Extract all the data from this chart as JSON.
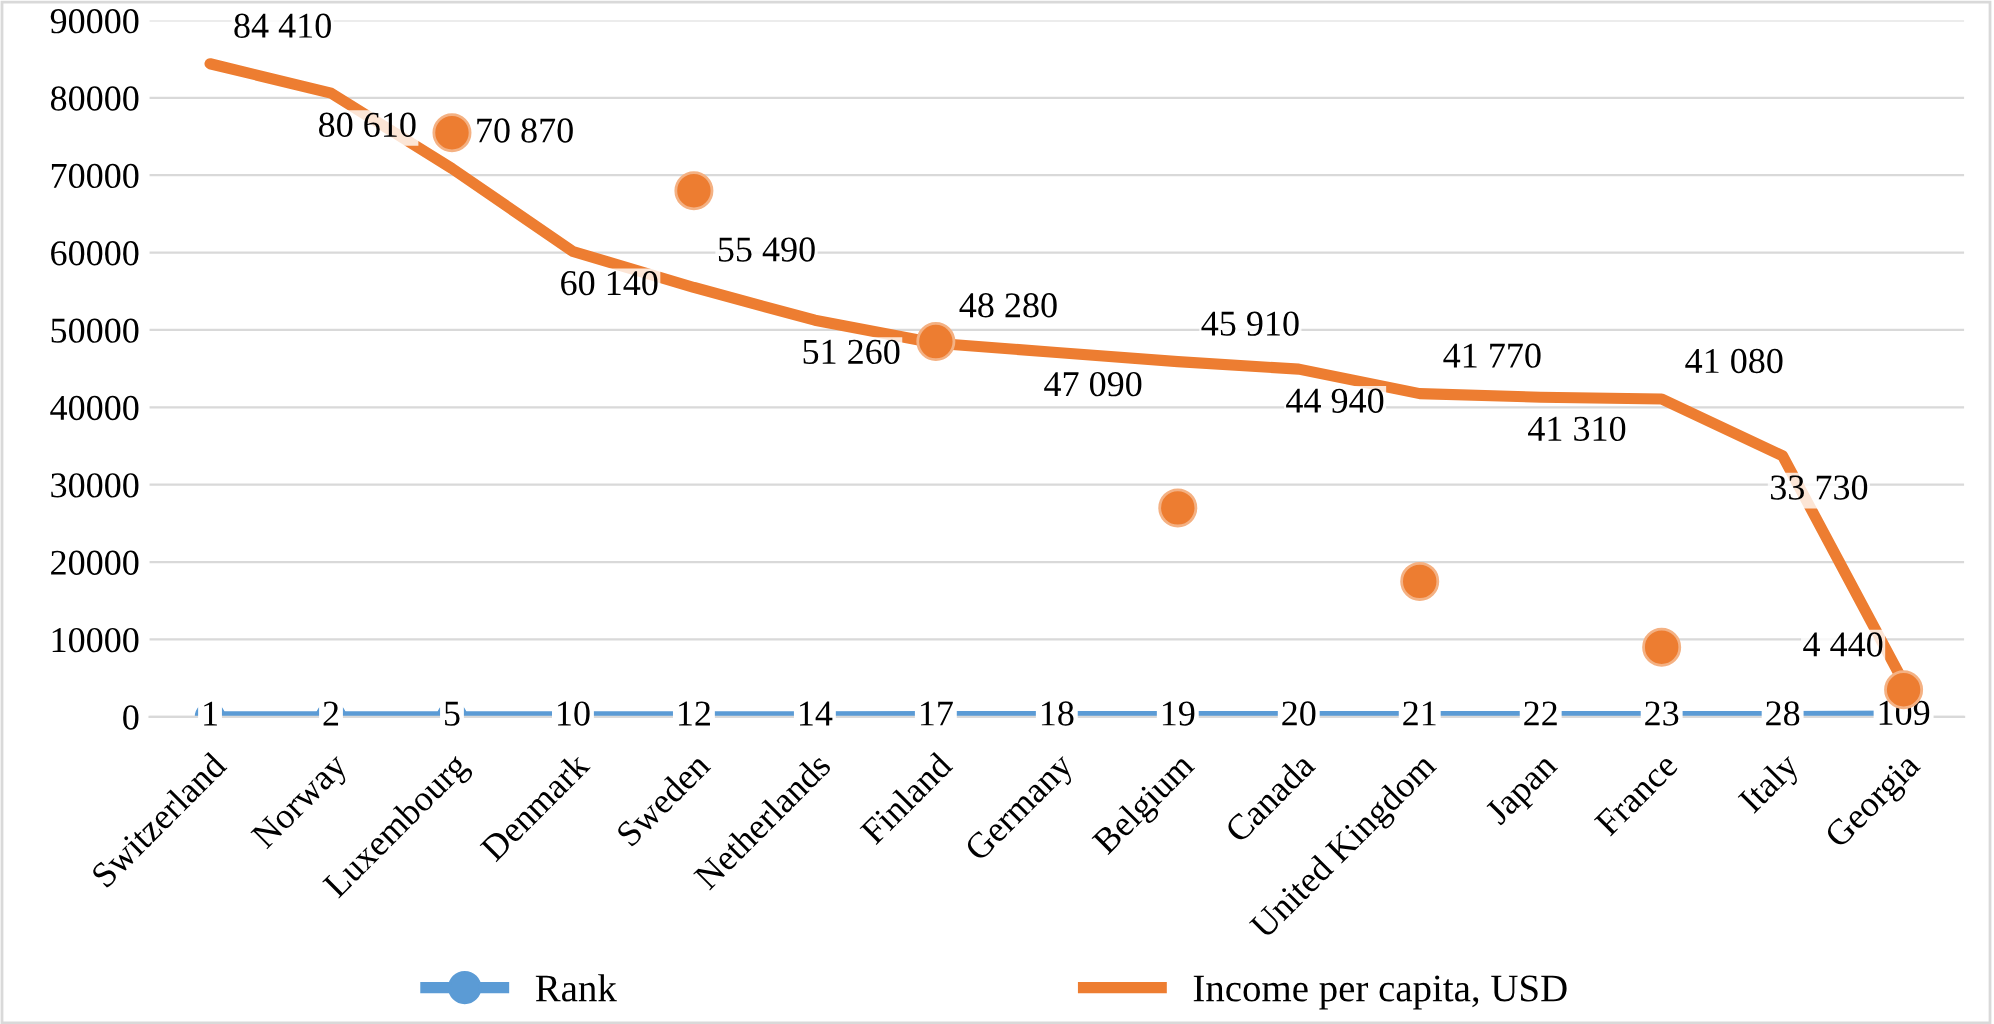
{
  "chart_data": {
    "type": "line",
    "categories": [
      "Switzerland",
      "Norway",
      "Luxembourg",
      "Denmark",
      "Sweden",
      "Netherlands",
      "Finland",
      "Germany",
      "Belgium",
      "Canada",
      "United Kingdom",
      "Japan",
      "France",
      "Italy",
      "Georgia"
    ],
    "series": [
      {
        "name": "Rank",
        "marker": "circle",
        "color": "#5b9bd5",
        "values": [
          1,
          2,
          5,
          10,
          12,
          14,
          17,
          18,
          19,
          20,
          21,
          22,
          23,
          28,
          109
        ],
        "value_labels": [
          "1",
          "2",
          "5",
          "10",
          "12",
          "14",
          "17",
          "18",
          "19",
          "20",
          "21",
          "22",
          "23",
          "28",
          "109"
        ]
      },
      {
        "name": "Income per capita, USD",
        "color": "#ed7d31",
        "values": [
          84410,
          80610,
          70870,
          60140,
          55490,
          51260,
          48280,
          47090,
          45910,
          44940,
          41770,
          41310,
          41080,
          33730,
          4440
        ],
        "value_labels": [
          "84 410",
          "80 610",
          "70 870",
          "60 140",
          "55 490",
          "51 260",
          "48 280",
          "47 090",
          "45 910",
          "44 940",
          "41 770",
          "41 310",
          "41 080",
          "33 730",
          "4 440"
        ]
      },
      {
        "type": "scatter",
        "marker": "circle",
        "color": "#ed7d31",
        "x": [
          "Luxembourg",
          "Sweden",
          "Finland",
          "Belgium",
          "United Kingdom",
          "France",
          "Georgia"
        ],
        "values": [
          75500,
          68000,
          48500,
          27000,
          17500,
          9000,
          3500
        ]
      }
    ],
    "ylim": [
      0,
      90000
    ],
    "yticks": [
      0,
      10000,
      20000,
      30000,
      40000,
      50000,
      60000,
      70000,
      80000,
      90000
    ],
    "grid": "y",
    "legend": "bottom"
  }
}
